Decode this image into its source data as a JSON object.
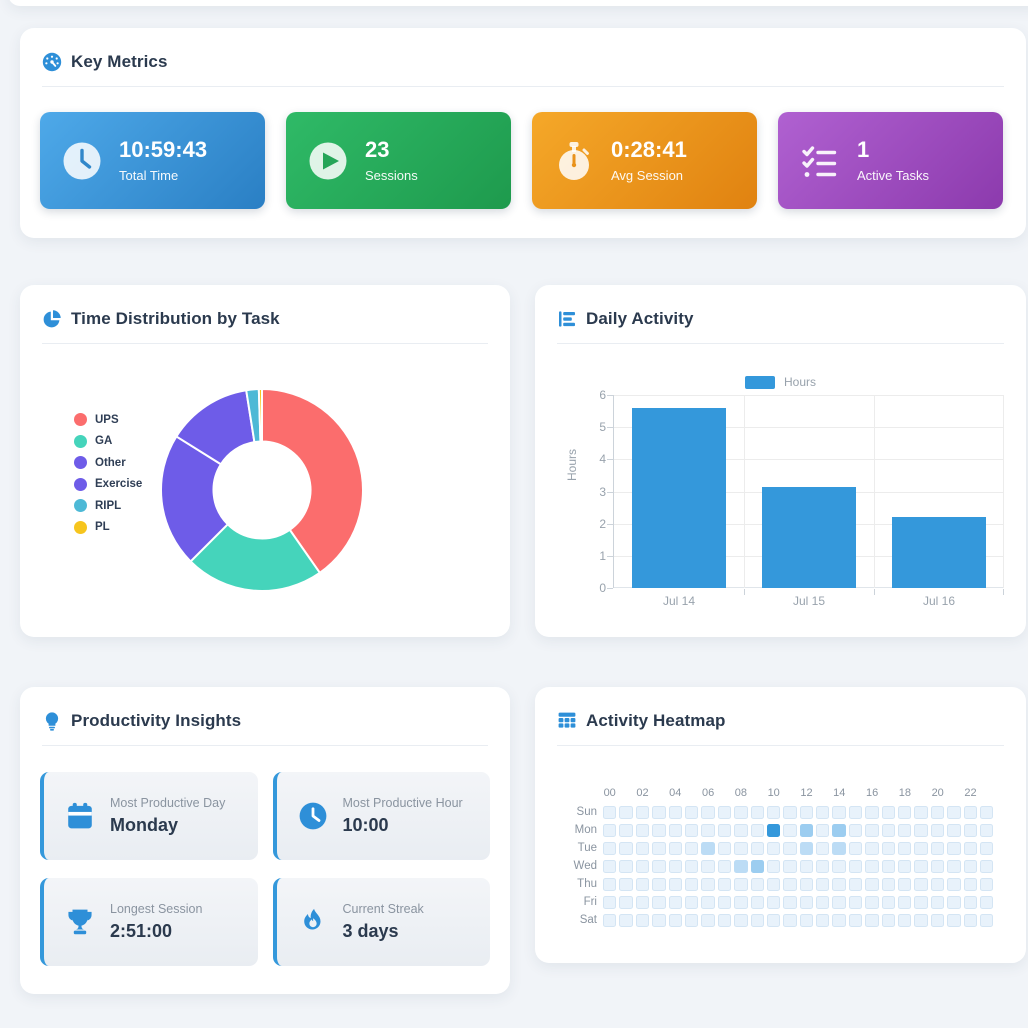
{
  "accent": "#3498db",
  "icon_blue": "#2e8fd8",
  "key_metrics": {
    "title": "Key Metrics",
    "cards": [
      {
        "value": "10:59:43",
        "label": "Total Time",
        "icon": "clock-icon",
        "gradient_from": "#4ea9e9",
        "gradient_to": "#2a7fc4",
        "glyph": "#3187ca"
      },
      {
        "value": "23",
        "label": "Sessions",
        "icon": "play-icon",
        "gradient_from": "#2fba67",
        "gradient_to": "#1e9a4d",
        "glyph": "#25a558"
      },
      {
        "value": "0:28:41",
        "label": "Avg Session",
        "icon": "stopwatch-icon",
        "gradient_from": "#f5a829",
        "gradient_to": "#e08210",
        "glyph": "#e9921b"
      },
      {
        "value": "1",
        "label": "Active Tasks",
        "icon": "checklist-icon",
        "gradient_from": "#b061d1",
        "gradient_to": "#8c3aad",
        "glyph": "#ffffff"
      }
    ]
  },
  "time_distribution": {
    "title": "Time Distribution by Task"
  },
  "daily_activity": {
    "title": "Daily Activity"
  },
  "insights": {
    "title": "Productivity Insights",
    "cards": [
      {
        "label": "Most Productive Day",
        "value": "Monday",
        "icon": "calendar-icon"
      },
      {
        "label": "Most Productive Hour",
        "value": "10:00",
        "icon": "clock-icon"
      },
      {
        "label": "Longest Session",
        "value": "2:51:00",
        "icon": "trophy-icon"
      },
      {
        "label": "Current Streak",
        "value": "3 days",
        "icon": "flame-icon"
      }
    ]
  },
  "heatmap_section": {
    "title": "Activity Heatmap"
  },
  "chart_data": [
    {
      "type": "pie",
      "donut": true,
      "title": "Time Distribution by Task",
      "labels": [
        "UPS",
        "GA",
        "Other",
        "Exercise",
        "RIPL",
        "PL"
      ],
      "values": [
        40.3,
        22.2,
        21.4,
        13.6,
        2.0,
        0.5
      ],
      "colors": [
        "#fb6d6d",
        "#45d4bb",
        "#6e5ce8",
        "#6e5ce8",
        "#4db9d6",
        "#f6c51e"
      ],
      "legend_position": "left"
    },
    {
      "type": "bar",
      "title": "Daily Activity",
      "series_name": "Hours",
      "categories": [
        "Jul 14",
        "Jul 15",
        "Jul 16"
      ],
      "values": [
        5.6,
        3.15,
        2.2
      ],
      "bar_color": "#3498db",
      "ylabel": "Hours",
      "ylim": [
        0,
        6
      ],
      "yticks": [
        0,
        1,
        2,
        3,
        4,
        5,
        6
      ],
      "grid": true,
      "legend_position": "top"
    },
    {
      "type": "heatmap",
      "title": "Activity Heatmap",
      "hour_labels": [
        "00",
        "02",
        "04",
        "06",
        "08",
        "10",
        "12",
        "14",
        "16",
        "18",
        "20",
        "22"
      ],
      "day_labels": [
        "Sun",
        "Mon",
        "Tue",
        "Wed",
        "Thu",
        "Fri",
        "Sat"
      ],
      "level_colors": [
        "#e8f2fb",
        "#bcdcf5",
        "#9ccdf0",
        "#3498db"
      ],
      "active_cells": [
        {
          "day": "Mon",
          "hour": 10,
          "level": 3
        },
        {
          "day": "Mon",
          "hour": 12,
          "level": 2
        },
        {
          "day": "Mon",
          "hour": 14,
          "level": 2
        },
        {
          "day": "Tue",
          "hour": 6,
          "level": 1
        },
        {
          "day": "Tue",
          "hour": 12,
          "level": 1
        },
        {
          "day": "Tue",
          "hour": 14,
          "level": 1
        },
        {
          "day": "Wed",
          "hour": 8,
          "level": 1
        },
        {
          "day": "Wed",
          "hour": 9,
          "level": 2
        }
      ]
    }
  ]
}
